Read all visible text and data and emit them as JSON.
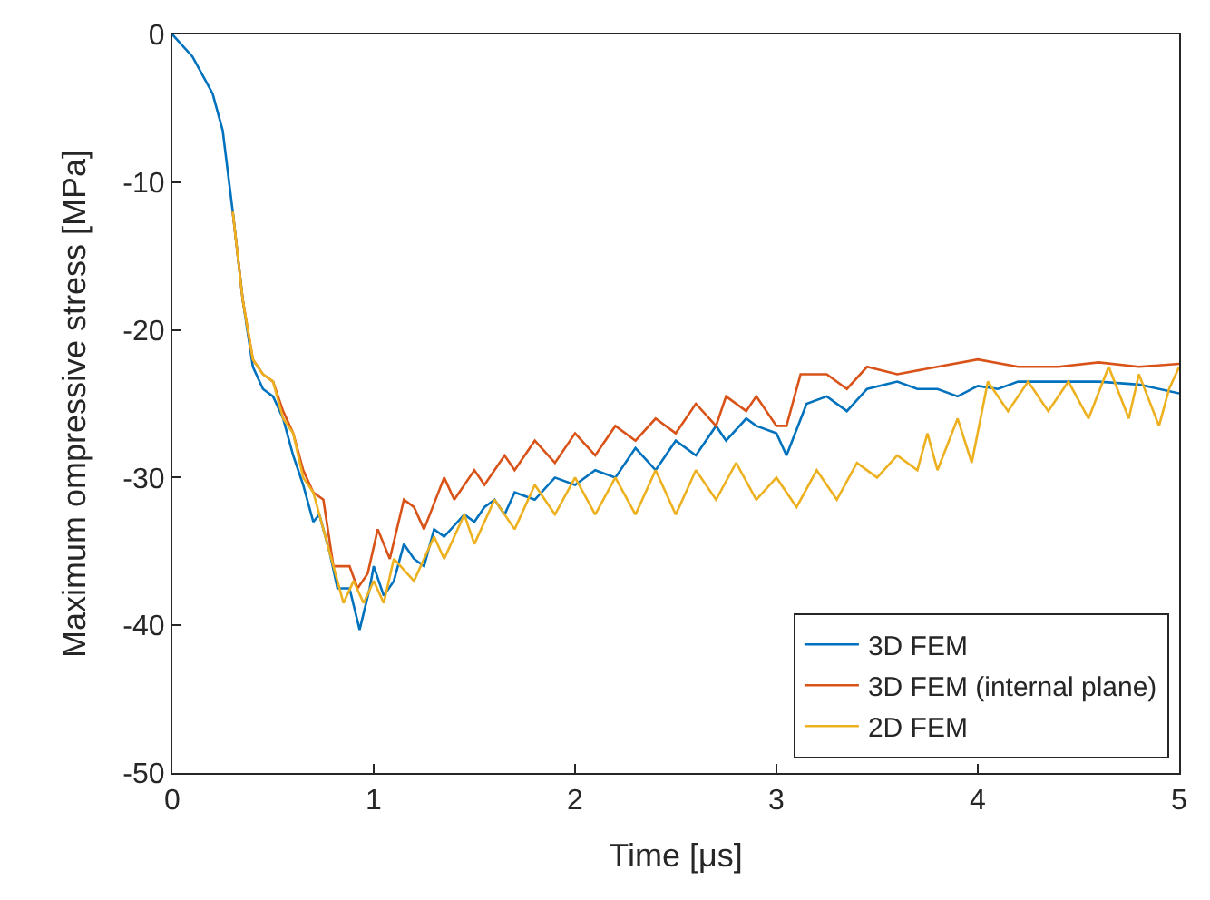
{
  "chart_data": {
    "type": "line",
    "xlabel": "Time [μs]",
    "ylabel": "Maximum ompressive stress [MPa]",
    "xlim": [
      0,
      5
    ],
    "xticks": [
      0,
      1,
      2,
      3,
      4,
      5
    ],
    "ylim": [
      -50,
      0
    ],
    "yticks": [
      -50,
      -40,
      -30,
      -20,
      -10,
      0
    ],
    "legend": "bottom right",
    "line_style": "solid",
    "marker": "none",
    "series": [
      {
        "name": "3D FEM",
        "color": "#0072bd",
        "x": [
          0,
          0.1,
          0.2,
          0.25,
          0.3,
          0.35,
          0.4,
          0.45,
          0.5,
          0.55,
          0.6,
          0.65,
          0.7,
          0.73,
          0.78,
          0.82,
          0.88,
          0.93,
          0.98,
          1.0,
          1.05,
          1.1,
          1.15,
          1.2,
          1.25,
          1.3,
          1.35,
          1.45,
          1.5,
          1.55,
          1.6,
          1.65,
          1.7,
          1.8,
          1.9,
          2.0,
          2.1,
          2.2,
          2.3,
          2.4,
          2.5,
          2.6,
          2.7,
          2.75,
          2.85,
          2.9,
          3.0,
          3.05,
          3.15,
          3.25,
          3.35,
          3.45,
          3.6,
          3.7,
          3.8,
          3.9,
          4.0,
          4.1,
          4.2,
          4.4,
          4.6,
          4.8,
          5.0
        ],
        "values": [
          0,
          -1.5,
          -4,
          -6.5,
          -12,
          -18,
          -22.5,
          -24,
          -24.5,
          -26,
          -28.5,
          -30.5,
          -33,
          -32.5,
          -35,
          -37.5,
          -37.5,
          -40.3,
          -37.5,
          -36,
          -38,
          -37,
          -34.5,
          -35.5,
          -36,
          -33.5,
          -34,
          -32.5,
          -33,
          -32,
          -31.5,
          -32.5,
          -31,
          -31.5,
          -30,
          -30.5,
          -29.5,
          -30,
          -28,
          -29.5,
          -27.5,
          -28.5,
          -26.5,
          -27.5,
          -26,
          -26.5,
          -27,
          -28.5,
          -25,
          -24.5,
          -25.5,
          -24,
          -23.5,
          -24,
          -24,
          -24.5,
          -23.8,
          -24,
          -23.5,
          -23.5,
          -23.5,
          -23.7,
          -24.3
        ]
      },
      {
        "name": "3D FEM (internal plane)",
        "color": "#d95319",
        "x": [
          0.3,
          0.35,
          0.4,
          0.45,
          0.5,
          0.55,
          0.6,
          0.65,
          0.7,
          0.75,
          0.8,
          0.88,
          0.92,
          0.97,
          1.02,
          1.08,
          1.15,
          1.2,
          1.25,
          1.35,
          1.4,
          1.5,
          1.55,
          1.65,
          1.7,
          1.8,
          1.9,
          2.0,
          2.1,
          2.2,
          2.3,
          2.4,
          2.5,
          2.6,
          2.7,
          2.75,
          2.85,
          2.9,
          3.0,
          3.05,
          3.12,
          3.25,
          3.35,
          3.45,
          3.6,
          3.8,
          4.0,
          4.2,
          4.4,
          4.6,
          4.8,
          5.0
        ],
        "values": [
          -12,
          -18,
          -22,
          -23,
          -23.5,
          -25.5,
          -27,
          -29.5,
          -31,
          -31.5,
          -36,
          -36,
          -37.5,
          -36.5,
          -33.5,
          -35.5,
          -31.5,
          -32,
          -33.5,
          -30,
          -31.5,
          -29.5,
          -30.5,
          -28.5,
          -29.5,
          -27.5,
          -29,
          -27,
          -28.5,
          -26.5,
          -27.5,
          -26,
          -27,
          -25,
          -26.5,
          -24.5,
          -25.5,
          -24.5,
          -26.5,
          -26.5,
          -23,
          -23,
          -24,
          -22.5,
          -23,
          -22.5,
          -22,
          -22.5,
          -22.5,
          -22.2,
          -22.5,
          -22.3
        ]
      },
      {
        "name": "2D FEM",
        "color": "#edb120",
        "x": [
          0.3,
          0.35,
          0.4,
          0.45,
          0.5,
          0.55,
          0.6,
          0.65,
          0.7,
          0.75,
          0.8,
          0.85,
          0.9,
          0.95,
          1.0,
          1.05,
          1.1,
          1.2,
          1.3,
          1.35,
          1.45,
          1.5,
          1.6,
          1.7,
          1.8,
          1.9,
          2.0,
          2.1,
          2.2,
          2.3,
          2.4,
          2.5,
          2.6,
          2.7,
          2.8,
          2.9,
          3.0,
          3.1,
          3.2,
          3.3,
          3.4,
          3.5,
          3.6,
          3.7,
          3.75,
          3.8,
          3.9,
          3.97,
          4.05,
          4.15,
          4.25,
          4.35,
          4.45,
          4.55,
          4.65,
          4.75,
          4.8,
          4.9,
          4.95,
          5.0
        ],
        "values": [
          -12,
          -18,
          -22,
          -23,
          -23.5,
          -26,
          -27,
          -30,
          -31,
          -33.5,
          -36,
          -38.5,
          -37,
          -38.5,
          -37,
          -38.5,
          -35.5,
          -37,
          -34,
          -35.5,
          -32.5,
          -34.5,
          -31.5,
          -33.5,
          -30.5,
          -32.5,
          -30,
          -32.5,
          -30,
          -32.5,
          -29.5,
          -32.5,
          -29.5,
          -31.5,
          -29,
          -31.5,
          -30,
          -32,
          -29.5,
          -31.5,
          -29,
          -30,
          -28.5,
          -29.5,
          -27,
          -29.5,
          -26,
          -29,
          -23.5,
          -25.5,
          -23.5,
          -25.5,
          -23.5,
          -26,
          -22.5,
          -26,
          -23,
          -26.5,
          -24,
          -22.5
        ]
      }
    ]
  }
}
